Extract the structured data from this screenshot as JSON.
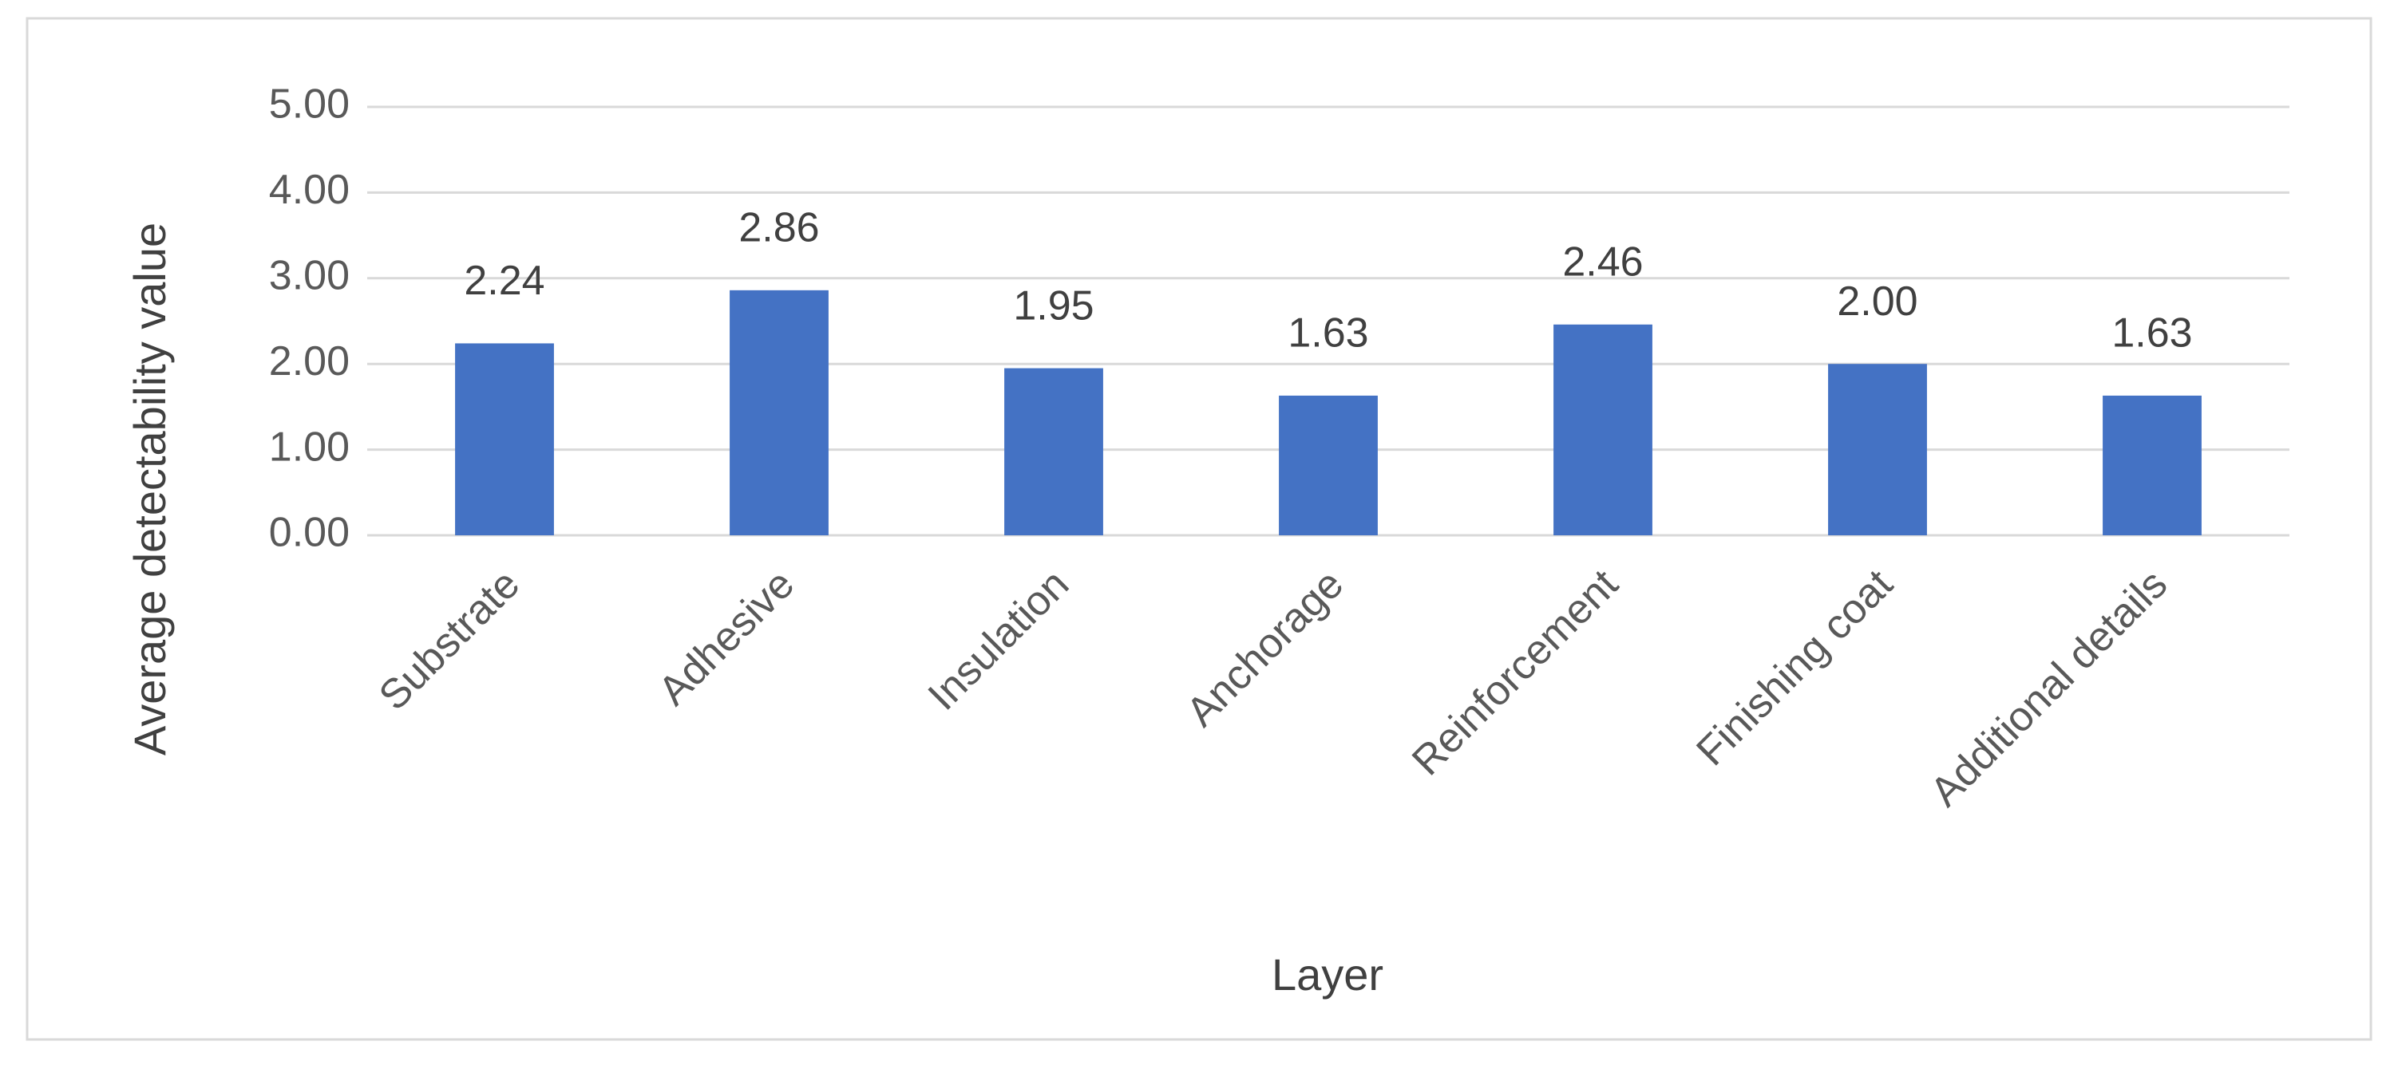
{
  "chart_data": {
    "type": "bar",
    "x_label": "Layer",
    "y_label": "Average detectability value",
    "categories": [
      "Substrate",
      "Adhesive",
      "Insulation",
      "Anchorage",
      "Reinforcement",
      "Finishing coat",
      "Additional details"
    ],
    "values": [
      2.24,
      2.86,
      1.95,
      1.63,
      2.46,
      2.0,
      1.63
    ],
    "value_labels": [
      "2.24",
      "2.86",
      "1.95",
      "1.63",
      "2.46",
      "2.00",
      "1.63"
    ],
    "color": "#4472c4",
    "ylim": [
      0,
      5
    ],
    "yticks": [
      {
        "value": 0,
        "label": "0.00"
      },
      {
        "value": 1,
        "label": "1.00"
      },
      {
        "value": 2,
        "label": "2.00"
      },
      {
        "value": 3,
        "label": "3.00"
      },
      {
        "value": 4,
        "label": "4.00"
      },
      {
        "value": 5,
        "label": "5.00"
      }
    ],
    "grid": true
  }
}
